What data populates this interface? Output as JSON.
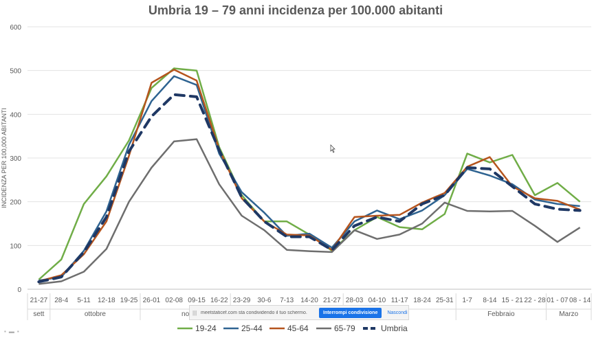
{
  "chart_data": {
    "type": "line",
    "title": "Umbria 19 – 79 anni incidenza per 100.000 abitanti",
    "ylabel": "INCIDENZA PER 100,000 ABITANTI",
    "ylim": [
      0,
      600
    ],
    "yticks": [
      0,
      100,
      200,
      300,
      400,
      500,
      600
    ],
    "grid": true,
    "legend_position": "bottom",
    "categories": [
      "21-27",
      "28-4",
      "5-11",
      "12-18",
      "19-25",
      "26-01",
      "02-08",
      "09-15",
      "16-22",
      "23-29",
      "30-6",
      "7-13",
      "14-20",
      "21-27",
      "28-03",
      "04-10",
      "11-17",
      "18-24",
      "25-31",
      "1-7",
      "8-14",
      "15 - 21",
      "22 - 28",
      "01 - 07",
      "08 - 14"
    ],
    "months": [
      {
        "label": "sett",
        "from": 0,
        "to": 0
      },
      {
        "label": "ottobre",
        "from": 1,
        "to": 4
      },
      {
        "label": "no",
        "from": 5,
        "to": 8
      },
      {
        "label": "",
        "from": 9,
        "to": 13
      },
      {
        "label": "aio",
        "from": 14,
        "to": 18
      },
      {
        "label": "Febbraio",
        "from": 19,
        "to": 22
      },
      {
        "label": "Marzo",
        "from": 23,
        "to": 24
      }
    ],
    "series": [
      {
        "name": "19-24",
        "color": "#70ad47",
        "dash": false,
        "values": [
          22,
          68,
          195,
          258,
          340,
          460,
          505,
          500,
          325,
          215,
          155,
          155,
          125,
          88,
          135,
          165,
          142,
          137,
          172,
          310,
          290,
          307,
          215,
          243,
          200
        ]
      },
      {
        "name": "25-44",
        "color": "#2e6391",
        "dash": false,
        "values": [
          20,
          28,
          88,
          178,
          330,
          430,
          487,
          467,
          310,
          222,
          175,
          122,
          127,
          95,
          155,
          180,
          160,
          180,
          215,
          275,
          260,
          240,
          205,
          195,
          190
        ]
      },
      {
        "name": "45-64",
        "color": "#b5541d",
        "dash": false,
        "values": [
          18,
          32,
          80,
          155,
          305,
          472,
          502,
          477,
          320,
          208,
          155,
          125,
          123,
          90,
          165,
          168,
          170,
          198,
          220,
          280,
          302,
          235,
          208,
          202,
          182
        ]
      },
      {
        "name": "65-79",
        "color": "#6e6e6e",
        "dash": false,
        "values": [
          12,
          18,
          40,
          92,
          200,
          278,
          338,
          343,
          240,
          168,
          135,
          90,
          87,
          85,
          135,
          115,
          125,
          150,
          198,
          179,
          178,
          179,
          145,
          108,
          141
        ]
      },
      {
        "name": "Umbria",
        "color": "#1f3864",
        "dash": true,
        "values": [
          17,
          28,
          85,
          165,
          315,
          395,
          445,
          440,
          318,
          210,
          155,
          120,
          120,
          90,
          145,
          165,
          155,
          195,
          215,
          278,
          275,
          235,
          195,
          183,
          180
        ]
      }
    ]
  },
  "share_bar": {
    "handle": "|||",
    "message": "meetstaticef.com sta condividendo il tuo schermo.",
    "stop_label": "Interrompi condivisione",
    "hide_label": "Nascondi"
  }
}
